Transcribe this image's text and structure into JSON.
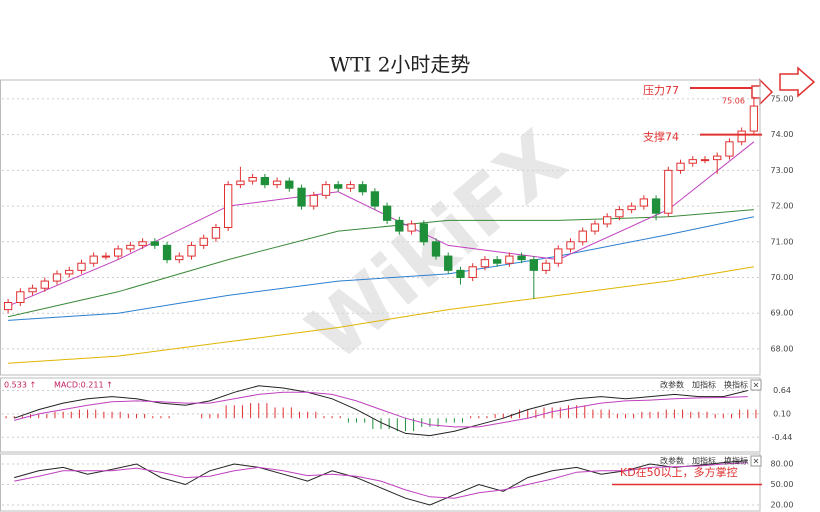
{
  "chart_data": [
    {
      "type": "candlestick",
      "title": "WTI 2小时走势",
      "watermark": "WikiFX",
      "open": [
        69.1,
        69.3,
        69.6,
        69.7,
        69.9,
        70.1,
        70.2,
        70.4,
        70.6,
        70.6,
        70.8,
        70.9,
        71.0,
        70.9,
        70.5,
        70.6,
        70.9,
        71.1,
        71.4,
        72.6,
        72.7,
        72.8,
        72.6,
        72.7,
        72.5,
        72.0,
        72.3,
        72.6,
        72.5,
        72.6,
        72.4,
        72.0,
        71.6,
        71.3,
        71.5,
        71.0,
        70.6,
        70.2,
        70.0,
        70.3,
        70.5,
        70.4,
        70.6,
        70.5,
        70.2,
        70.4,
        70.8,
        71.0,
        71.3,
        71.5,
        71.7,
        71.9,
        72.0,
        72.2,
        71.8,
        73.0,
        73.2,
        73.3,
        73.3,
        73.4,
        73.8,
        74.1
      ],
      "high": [
        69.4,
        69.7,
        69.8,
        70.0,
        70.2,
        70.3,
        70.5,
        70.7,
        70.7,
        70.9,
        71.0,
        71.1,
        71.1,
        71.0,
        70.7,
        71.0,
        71.2,
        71.5,
        72.7,
        73.1,
        72.9,
        72.9,
        72.8,
        72.8,
        72.6,
        72.4,
        72.7,
        72.7,
        72.7,
        72.7,
        72.5,
        72.1,
        71.7,
        71.6,
        71.6,
        71.1,
        70.7,
        70.3,
        70.4,
        70.6,
        70.6,
        70.7,
        70.7,
        70.6,
        70.5,
        70.9,
        71.1,
        71.4,
        71.6,
        71.8,
        72.0,
        72.1,
        72.3,
        72.3,
        73.1,
        73.3,
        73.4,
        73.4,
        73.5,
        73.9,
        74.2,
        75.06
      ],
      "low": [
        69.0,
        69.2,
        69.5,
        69.6,
        69.8,
        70.0,
        70.1,
        70.3,
        70.5,
        70.5,
        70.7,
        70.8,
        70.8,
        70.4,
        70.4,
        70.5,
        70.8,
        71.0,
        71.3,
        72.5,
        72.6,
        72.5,
        72.5,
        72.4,
        71.9,
        71.9,
        72.2,
        72.4,
        72.4,
        72.3,
        71.9,
        71.5,
        71.2,
        71.2,
        70.9,
        70.5,
        70.1,
        69.8,
        69.9,
        70.2,
        70.3,
        70.3,
        70.4,
        69.4,
        70.1,
        70.3,
        70.7,
        70.9,
        71.2,
        71.4,
        71.6,
        71.8,
        71.9,
        71.6,
        71.7,
        72.9,
        73.1,
        73.2,
        72.9,
        73.3,
        73.7,
        74.0
      ],
      "close": [
        69.3,
        69.6,
        69.7,
        69.9,
        70.1,
        70.2,
        70.4,
        70.6,
        70.6,
        70.8,
        70.9,
        71.0,
        70.9,
        70.5,
        70.6,
        70.9,
        71.1,
        71.4,
        72.6,
        72.7,
        72.8,
        72.6,
        72.7,
        72.5,
        72.0,
        72.3,
        72.6,
        72.5,
        72.6,
        72.4,
        72.0,
        71.6,
        71.3,
        71.5,
        71.0,
        70.6,
        70.2,
        70.0,
        70.3,
        70.5,
        70.4,
        70.6,
        70.5,
        70.2,
        70.4,
        70.8,
        71.0,
        71.3,
        71.5,
        71.7,
        71.9,
        72.0,
        72.2,
        71.8,
        73.0,
        73.2,
        73.3,
        73.3,
        73.4,
        73.8,
        74.1,
        74.8
      ],
      "up_color": "#e03030",
      "down_color": "#1f8f3a",
      "lines": [
        {
          "color": "#e0b400",
          "x": [
            0,
            9,
            18,
            27,
            36,
            45,
            54,
            61
          ],
          "values": [
            67.6,
            67.8,
            68.2,
            68.6,
            69.1,
            69.5,
            69.9,
            70.3
          ]
        },
        {
          "color": "#2a7fd0",
          "x": [
            0,
            9,
            18,
            27,
            36,
            45,
            54,
            61
          ],
          "values": [
            68.8,
            69.0,
            69.5,
            69.9,
            70.1,
            70.6,
            71.2,
            71.7
          ]
        },
        {
          "color": "#3a8a3a",
          "x": [
            0,
            9,
            18,
            27,
            36,
            45,
            54,
            61
          ],
          "values": [
            68.9,
            69.6,
            70.5,
            71.3,
            71.6,
            71.6,
            71.7,
            71.9
          ]
        },
        {
          "color": "#c040c0",
          "x": [
            0,
            9,
            18,
            27,
            36,
            45,
            54,
            61
          ],
          "values": [
            69.2,
            70.5,
            72.0,
            72.4,
            70.9,
            70.5,
            71.9,
            73.8
          ]
        }
      ],
      "ylim": [
        67.27,
        75.53
      ],
      "yticks": [
        {
          "value": 68,
          "label": "68.00"
        },
        {
          "value": 69,
          "label": "69.00"
        },
        {
          "value": 70,
          "label": "70.00"
        },
        {
          "value": 71,
          "label": "71.00"
        },
        {
          "value": 72,
          "label": "72.00"
        },
        {
          "value": 73,
          "label": "73.00"
        },
        {
          "value": 74,
          "label": "74.00"
        },
        {
          "value": 75,
          "label": "75.00"
        }
      ],
      "grid": true,
      "resistance_label": "压力77",
      "support": {
        "label": "支撑74",
        "value": 74
      },
      "high_label": 75.06
    },
    {
      "type": "macd",
      "labels": [
        "0.533 ↑",
        "MACD:0.211 ↑"
      ],
      "buttons": [
        "改参数",
        "加指标",
        "换指标",
        "×"
      ],
      "histogram": [
        0.05,
        0.1,
        0.15,
        0.2,
        0.15,
        0.1,
        0.05,
        0.0,
        0.1,
        0.3,
        0.35,
        0.25,
        0.15,
        0.05,
        -0.1,
        -0.25,
        -0.3,
        -0.2,
        -0.1,
        0.05,
        0.1,
        0.2,
        0.25,
        0.3,
        0.2,
        0.1,
        0.15,
        0.2,
        0.15,
        0.1,
        0.2
      ],
      "up_color": "#e03030",
      "down_color": "#1f8f3a",
      "lines": [
        {
          "color": "#222222",
          "values": [
            0.0,
            0.2,
            0.35,
            0.45,
            0.5,
            0.45,
            0.35,
            0.3,
            0.4,
            0.6,
            0.75,
            0.7,
            0.6,
            0.45,
            0.2,
            -0.1,
            -0.35,
            -0.4,
            -0.3,
            -0.15,
            0.0,
            0.2,
            0.35,
            0.45,
            0.5,
            0.45,
            0.5,
            0.55,
            0.5,
            0.5,
            0.64
          ]
        },
        {
          "color": "#c040c0",
          "values": [
            -0.05,
            0.1,
            0.2,
            0.3,
            0.38,
            0.4,
            0.38,
            0.35,
            0.35,
            0.45,
            0.55,
            0.6,
            0.6,
            0.55,
            0.4,
            0.2,
            0.0,
            -0.15,
            -0.2,
            -0.2,
            -0.1,
            0.0,
            0.15,
            0.25,
            0.35,
            0.4,
            0.42,
            0.45,
            0.47,
            0.48,
            0.5
          ]
        }
      ],
      "ylim": [
        -0.78,
        0.93
      ],
      "yticks": [
        0.64,
        {
          "value": 0.1,
          "label": "0.10"
        },
        -0.44
      ],
      "grid": true
    },
    {
      "type": "kd",
      "buttons": [
        "改参数",
        "加指标",
        "换指标",
        "×"
      ],
      "lines": [
        {
          "color": "#222222",
          "values": [
            60,
            70,
            75,
            65,
            72,
            80,
            60,
            50,
            70,
            80,
            75,
            65,
            55,
            70,
            60,
            45,
            30,
            20,
            35,
            50,
            40,
            60,
            70,
            75,
            65,
            70,
            80,
            75,
            78,
            82,
            85
          ]
        },
        {
          "color": "#c040c0",
          "values": [
            55,
            62,
            70,
            70,
            70,
            74,
            68,
            60,
            62,
            70,
            75,
            70,
            63,
            65,
            62,
            55,
            42,
            32,
            30,
            38,
            42,
            50,
            58,
            68,
            70,
            70,
            75,
            76,
            77,
            80,
            82
          ]
        }
      ],
      "annotation": {
        "label": "KD在50以上，多方掌控",
        "value": 50
      },
      "ylim": [
        11.2,
        94.6
      ],
      "yticks": [
        {
          "value": 80,
          "label": "80.00"
        },
        {
          "value": 50,
          "label": "50.00"
        },
        {
          "value": 20,
          "label": "20.00"
        }
      ],
      "grid": true
    }
  ]
}
